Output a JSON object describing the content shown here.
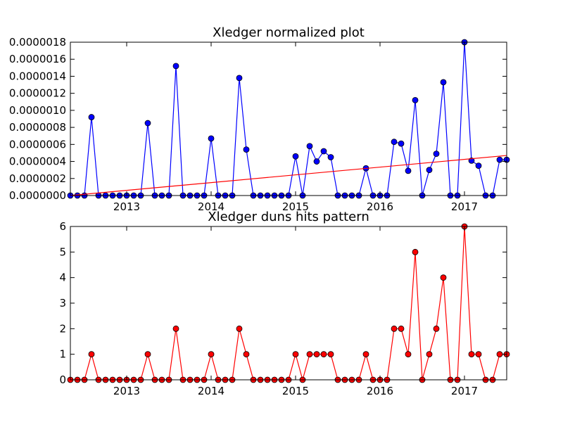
{
  "chart_data": [
    {
      "type": "line",
      "title": "Xledger normalized plot",
      "xlabel": "",
      "ylabel": "",
      "x_tick_labels": [
        "2013",
        "2014",
        "2015",
        "2016",
        "2017"
      ],
      "y_tick_labels": [
        "0.0000000",
        "0.0000002",
        "0.0000004",
        "0.0000006",
        "0.0000008",
        "0.0000010",
        "0.0000012",
        "0.0000014",
        "0.0000016",
        "0.0000018"
      ],
      "xlim": [
        "2012-05",
        "2017-07"
      ],
      "ylim": [
        0,
        1.8e-06
      ],
      "grid": false,
      "legend": "none",
      "x": [
        "2012-05",
        "2012-06",
        "2012-07",
        "2012-08",
        "2012-09",
        "2012-10",
        "2012-11",
        "2012-12",
        "2013-01",
        "2013-02",
        "2013-03",
        "2013-04",
        "2013-05",
        "2013-06",
        "2013-07",
        "2013-08",
        "2013-09",
        "2013-10",
        "2013-11",
        "2013-12",
        "2014-01",
        "2014-02",
        "2014-03",
        "2014-04",
        "2014-05",
        "2014-06",
        "2014-07",
        "2014-08",
        "2014-09",
        "2014-10",
        "2014-11",
        "2014-12",
        "2015-01",
        "2015-02",
        "2015-03",
        "2015-04",
        "2015-05",
        "2015-06",
        "2015-07",
        "2015-08",
        "2015-09",
        "2015-10",
        "2015-11",
        "2015-12",
        "2016-01",
        "2016-02",
        "2016-03",
        "2016-04",
        "2016-05",
        "2016-06",
        "2016-07",
        "2016-08",
        "2016-09",
        "2016-10",
        "2016-11",
        "2016-12",
        "2017-01",
        "2017-02",
        "2017-03",
        "2017-04",
        "2017-05",
        "2017-06",
        "2017-07"
      ],
      "series": [
        {
          "color": "#0000ff",
          "marker": "circle",
          "values": [
            0,
            0,
            0,
            9.2e-07,
            0,
            0,
            0,
            0,
            0,
            0,
            0,
            8.5e-07,
            0,
            0,
            0,
            1.52e-06,
            0,
            0,
            0,
            0,
            6.7e-07,
            0,
            0,
            0,
            1.38e-06,
            5.4e-07,
            0,
            0,
            0,
            0,
            0,
            0,
            4.6e-07,
            0,
            5.8e-07,
            4e-07,
            5.2e-07,
            4.5e-07,
            0,
            0,
            0,
            0,
            3.2e-07,
            0,
            0,
            0,
            6.3e-07,
            6.1e-07,
            2.9e-07,
            1.12e-06,
            0,
            3e-07,
            4.9e-07,
            1.33e-06,
            0,
            0,
            1.8e-06,
            4.1e-07,
            3.5e-07,
            0,
            0,
            4.2e-07,
            4.2e-07
          ]
        },
        {
          "color": "#ff0000",
          "marker": "none",
          "trend": true,
          "x": [
            "2012-05",
            "2017-07"
          ],
          "values": [
            0,
            4.7e-07
          ]
        }
      ]
    },
    {
      "type": "line",
      "title": "Xledger duns hits pattern",
      "xlabel": "",
      "ylabel": "",
      "x_tick_labels": [
        "2013",
        "2014",
        "2015",
        "2016",
        "2017"
      ],
      "y_tick_labels": [
        "0",
        "1",
        "2",
        "3",
        "4",
        "5",
        "6"
      ],
      "xlim": [
        "2012-05",
        "2017-07"
      ],
      "ylim": [
        0,
        6
      ],
      "grid": false,
      "legend": "none",
      "x": [
        "2012-05",
        "2012-06",
        "2012-07",
        "2012-08",
        "2012-09",
        "2012-10",
        "2012-11",
        "2012-12",
        "2013-01",
        "2013-02",
        "2013-03",
        "2013-04",
        "2013-05",
        "2013-06",
        "2013-07",
        "2013-08",
        "2013-09",
        "2013-10",
        "2013-11",
        "2013-12",
        "2014-01",
        "2014-02",
        "2014-03",
        "2014-04",
        "2014-05",
        "2014-06",
        "2014-07",
        "2014-08",
        "2014-09",
        "2014-10",
        "2014-11",
        "2014-12",
        "2015-01",
        "2015-02",
        "2015-03",
        "2015-04",
        "2015-05",
        "2015-06",
        "2015-07",
        "2015-08",
        "2015-09",
        "2015-10",
        "2015-11",
        "2015-12",
        "2016-01",
        "2016-02",
        "2016-03",
        "2016-04",
        "2016-05",
        "2016-06",
        "2016-07",
        "2016-08",
        "2016-09",
        "2016-10",
        "2016-11",
        "2016-12",
        "2017-01",
        "2017-02",
        "2017-03",
        "2017-04",
        "2017-05",
        "2017-06",
        "2017-07"
      ],
      "series": [
        {
          "color": "#ff0000",
          "marker": "circle",
          "values": [
            0,
            0,
            0,
            1,
            0,
            0,
            0,
            0,
            0,
            0,
            0,
            1,
            0,
            0,
            0,
            2,
            0,
            0,
            0,
            0,
            1,
            0,
            0,
            0,
            2,
            1,
            0,
            0,
            0,
            0,
            0,
            0,
            1,
            0,
            1,
            1,
            1,
            1,
            0,
            0,
            0,
            0,
            1,
            0,
            0,
            0,
            2,
            2,
            1,
            5,
            0,
            1,
            2,
            4,
            0,
            0,
            6,
            1,
            1,
            0,
            0,
            1,
            1
          ]
        }
      ]
    }
  ]
}
